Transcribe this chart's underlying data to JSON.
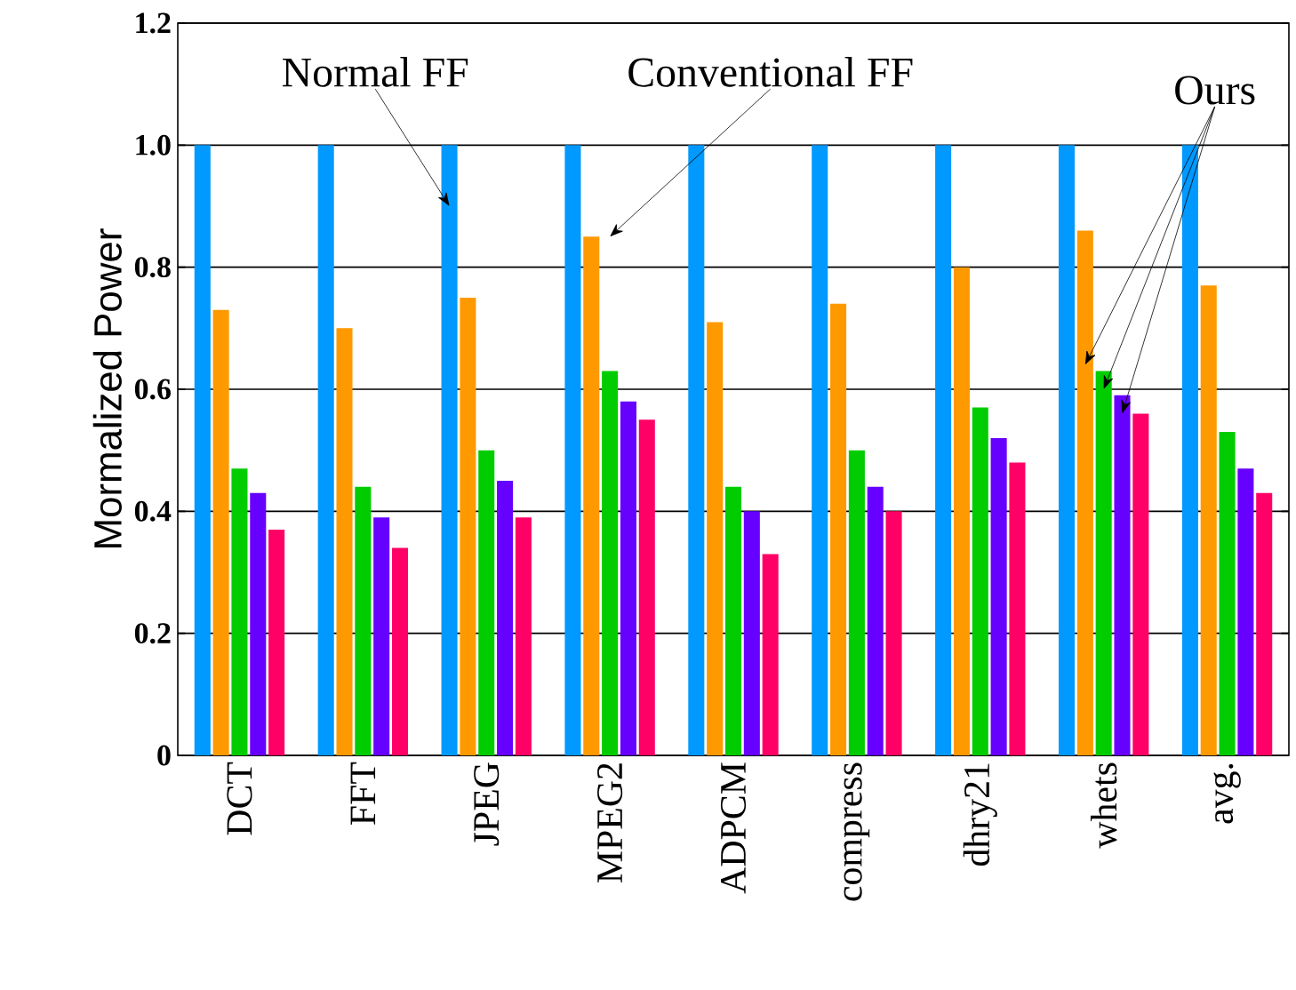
{
  "chart_data": {
    "type": "bar",
    "ylabel": "Mormalized Power",
    "categories": [
      "DCT",
      "FFT",
      "JPEG",
      "MPEG2",
      "ADPCM",
      "compress",
      "dhry21",
      "whets",
      "avg."
    ],
    "series": [
      {
        "color": "#0099ff",
        "values": [
          1,
          1,
          1,
          1,
          1,
          1,
          1,
          1,
          1
        ]
      },
      {
        "color": "#ff9900",
        "values": [
          0.73,
          0.7,
          0.75,
          0.85,
          0.71,
          0.74,
          0.8,
          0.86,
          0.77
        ]
      },
      {
        "color": "#00cc00",
        "values": [
          0.47,
          0.44,
          0.5,
          0.63,
          0.44,
          0.5,
          0.57,
          0.63,
          0.53
        ]
      },
      {
        "color": "#6600ff",
        "values": [
          0.43,
          0.39,
          0.45,
          0.58,
          0.4,
          0.44,
          0.52,
          0.59,
          0.47
        ]
      },
      {
        "color": "#ff0066",
        "values": [
          0.37,
          0.34,
          0.39,
          0.55,
          0.33,
          0.4,
          0.48,
          0.56,
          0.43
        ]
      }
    ],
    "ylim": [
      0,
      1.2
    ],
    "yticks": [
      0,
      0.2,
      0.4,
      0.6,
      0.8,
      {
        "value": 1,
        "label": "1.0"
      },
      1.2
    ],
    "grid": "y",
    "annotations": [
      "Normal FF",
      "Conventional FF",
      "Ours"
    ]
  }
}
